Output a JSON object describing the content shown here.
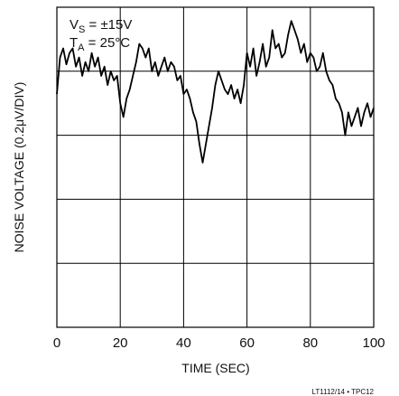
{
  "chart_data": {
    "type": "line",
    "xlabel": "TIME (SEC)",
    "ylabel": "NOISE VOLTAGE (0.2μV/DIV)",
    "xlim": [
      0,
      100
    ],
    "ylim": [
      -1.0,
      0.4
    ],
    "x_ticks": [
      "0",
      "20",
      "40",
      "60",
      "80",
      "100"
    ],
    "grid": true,
    "annotations": {
      "vs_main": "V",
      "vs_sub": "S",
      "vs_rest": " = ±15V",
      "ta_main": "T",
      "ta_sub": "A",
      "ta_rest": " = 25°C"
    },
    "footer": "LT1112/14 • TPC12",
    "series": [
      {
        "x": [
          0,
          1,
          2,
          3,
          4,
          5,
          6,
          7,
          8,
          9,
          10,
          11,
          12,
          13,
          14,
          15,
          16,
          17,
          18,
          19,
          20,
          21,
          22,
          23,
          24,
          25,
          26,
          27,
          28,
          29,
          30,
          31,
          32,
          33,
          34,
          35,
          36,
          37,
          38,
          39,
          40,
          41,
          42,
          43,
          44,
          45,
          46,
          47,
          48,
          49,
          50,
          51,
          52,
          53,
          54,
          55,
          56,
          57,
          58,
          59,
          60,
          61,
          62,
          63,
          64,
          65,
          66,
          67,
          68,
          69,
          70,
          71,
          72,
          73,
          74,
          75,
          76,
          77,
          78,
          79,
          80,
          81,
          82,
          83,
          84,
          85,
          86,
          87,
          88,
          89,
          90,
          91,
          92,
          93,
          94,
          95,
          96,
          97,
          98,
          99,
          100
        ],
        "values": [
          0.02,
          0.18,
          0.22,
          0.15,
          0.2,
          0.22,
          0.14,
          0.18,
          0.1,
          0.16,
          0.12,
          0.2,
          0.14,
          0.18,
          0.1,
          0.14,
          0.06,
          0.12,
          0.08,
          0.1,
          -0.02,
          -0.08,
          0.0,
          0.04,
          0.1,
          0.16,
          0.24,
          0.22,
          0.18,
          0.22,
          0.12,
          0.16,
          0.1,
          0.14,
          0.18,
          0.12,
          0.16,
          0.14,
          0.08,
          0.1,
          0.02,
          0.04,
          0.0,
          -0.06,
          -0.1,
          -0.2,
          -0.28,
          -0.2,
          -0.12,
          -0.04,
          0.06,
          0.12,
          0.08,
          0.04,
          0.02,
          0.06,
          0.0,
          0.04,
          -0.02,
          0.06,
          0.2,
          0.14,
          0.22,
          0.1,
          0.16,
          0.24,
          0.14,
          0.18,
          0.3,
          0.22,
          0.24,
          0.18,
          0.2,
          0.28,
          0.34,
          0.3,
          0.26,
          0.2,
          0.24,
          0.16,
          0.2,
          0.18,
          0.12,
          0.14,
          0.2,
          0.12,
          0.08,
          0.06,
          0.0,
          -0.02,
          -0.06,
          -0.16,
          -0.06,
          -0.12,
          -0.08,
          -0.04,
          -0.12,
          -0.06,
          -0.02,
          -0.08,
          -0.04
        ]
      }
    ]
  }
}
